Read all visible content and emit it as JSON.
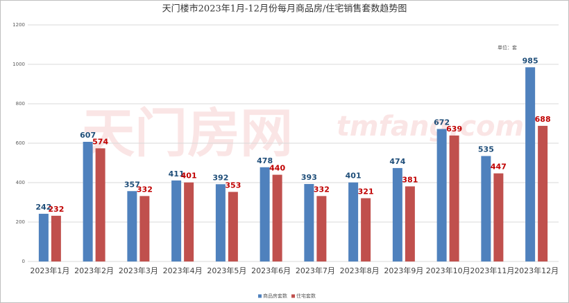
{
  "chart_data": {
    "type": "bar",
    "title": "天门楼市2023年1月-12月份每月商品房/住宅销售套数趋势图",
    "unit_note": "单位：套",
    "watermark": "天门房网",
    "watermark_en": "tmfang.com",
    "categories": [
      "2023年1月",
      "2023年2月",
      "2023年3月",
      "2023年4月",
      "2023年5月",
      "2023年6月",
      "2023年7月",
      "2023年8月",
      "2023年9月",
      "2023年10月",
      "2023年11月",
      "2023年12月"
    ],
    "series": [
      {
        "name": "商品房套数",
        "color": "#4f81bd",
        "label_color": "#1f4e79",
        "values": [
          242,
          607,
          357,
          411,
          392,
          478,
          393,
          401,
          474,
          672,
          535,
          985
        ]
      },
      {
        "name": "住宅套数",
        "color": "#c0504d",
        "label_color": "#c00000",
        "values": [
          232,
          574,
          332,
          401,
          353,
          440,
          332,
          321,
          381,
          639,
          447,
          688
        ]
      }
    ],
    "ylim": [
      0,
      1200
    ],
    "yticks": [
      0,
      200,
      400,
      600,
      800,
      1000,
      1200
    ],
    "grid": true,
    "legend": "bottom"
  }
}
